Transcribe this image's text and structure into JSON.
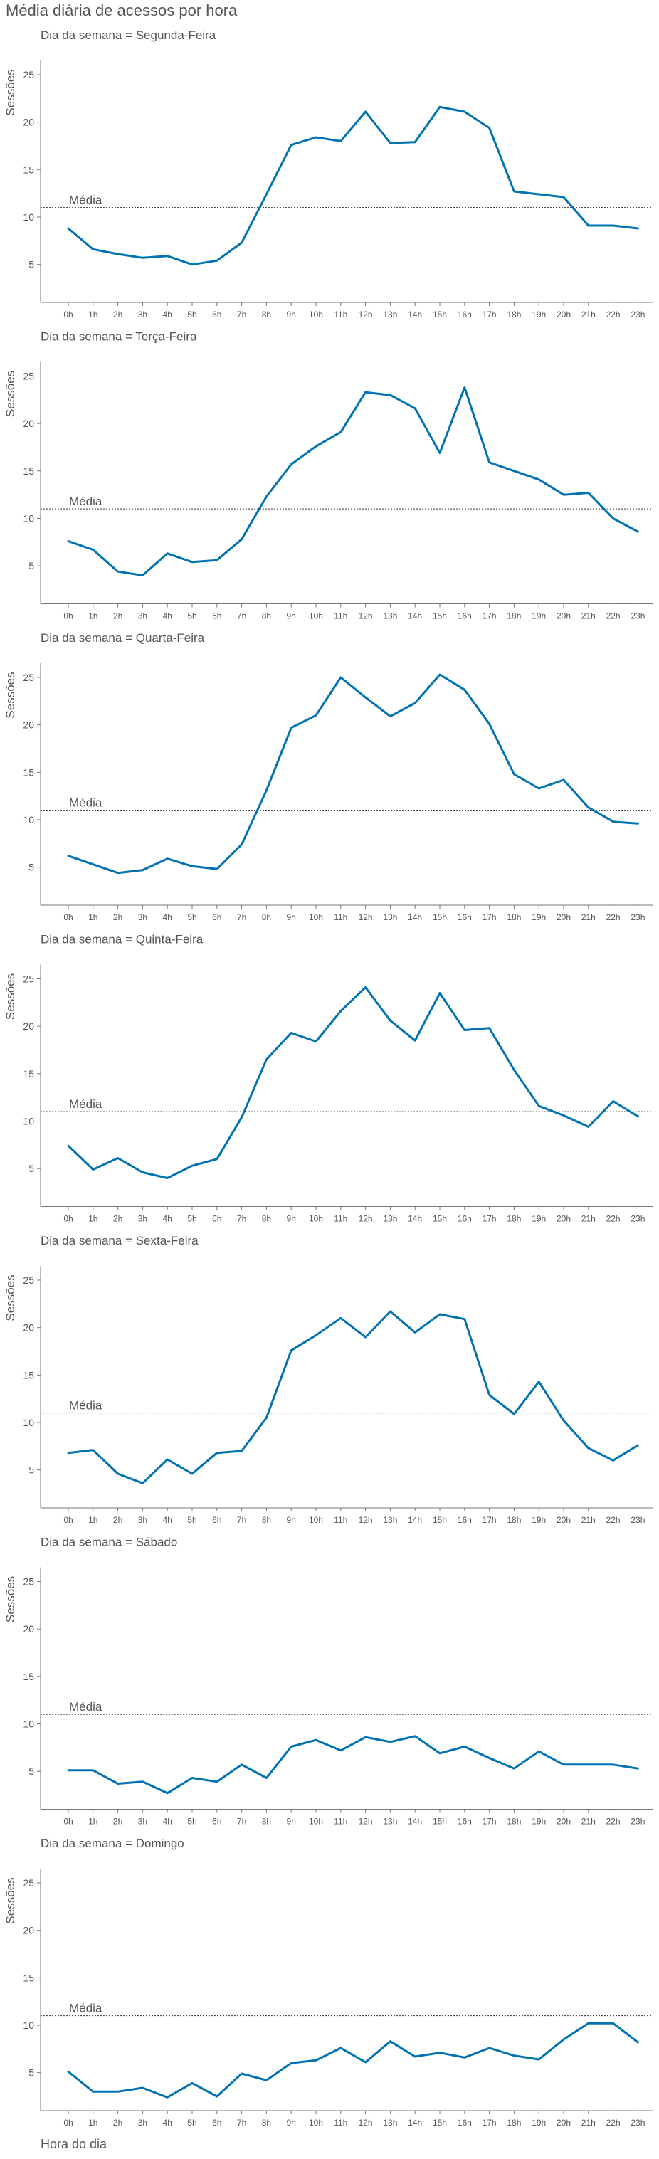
{
  "title": "Média diária de acessos por hora",
  "xlabel": "Hora do dia",
  "ylabel": "Sessões",
  "mean_label": "Média",
  "line_color": "#0072b2",
  "chart_data": {
    "type": "line",
    "categories": [
      "0h",
      "1h",
      "2h",
      "3h",
      "4h",
      "5h",
      "6h",
      "7h",
      "8h",
      "9h",
      "10h",
      "11h",
      "12h",
      "13h",
      "14h",
      "15h",
      "16h",
      "17h",
      "18h",
      "19h",
      "20h",
      "21h",
      "22h",
      "23h"
    ],
    "ylim": [
      1,
      26.5
    ],
    "yticks": [
      5,
      10,
      15,
      20,
      25
    ],
    "mean": 11,
    "grid": false,
    "panels": [
      {
        "title": "Dia da semana = Segunda-Feira",
        "values": [
          8.8,
          6.6,
          6.1,
          5.7,
          5.9,
          5.0,
          5.4,
          7.3,
          12.4,
          17.6,
          18.4,
          18.0,
          21.1,
          17.8,
          17.9,
          21.6,
          21.1,
          19.4,
          12.7,
          12.4,
          12.1,
          9.1,
          9.1,
          8.8
        ]
      },
      {
        "title": "Dia da semana = Terça-Feira",
        "values": [
          7.6,
          6.7,
          4.4,
          4.0,
          6.3,
          5.4,
          5.6,
          7.8,
          12.3,
          15.7,
          17.6,
          19.1,
          23.3,
          23.0,
          21.6,
          16.9,
          23.8,
          15.9,
          15.0,
          14.1,
          12.5,
          12.7,
          10.0,
          8.6
        ]
      },
      {
        "title": "Dia da semana = Quarta-Feira",
        "values": [
          6.2,
          5.3,
          4.4,
          4.7,
          5.9,
          5.1,
          4.8,
          7.4,
          13.1,
          19.7,
          21.0,
          25.0,
          22.9,
          20.9,
          22.3,
          25.3,
          23.7,
          20.1,
          14.8,
          13.3,
          14.2,
          11.3,
          9.8,
          9.6
        ]
      },
      {
        "title": "Dia da semana = Quinta-Feira",
        "values": [
          7.4,
          4.9,
          6.1,
          4.6,
          4.0,
          5.3,
          6.0,
          10.4,
          16.5,
          19.3,
          18.4,
          21.6,
          24.1,
          20.6,
          18.5,
          23.5,
          19.6,
          19.8,
          15.4,
          11.6,
          10.6,
          9.4,
          12.1,
          10.5
        ]
      },
      {
        "title": "Dia da semana = Sexta-Feira",
        "values": [
          6.8,
          7.1,
          4.6,
          3.6,
          6.1,
          4.6,
          6.8,
          7.0,
          10.5,
          17.6,
          19.2,
          21.0,
          19.0,
          21.7,
          19.5,
          21.4,
          20.9,
          12.9,
          10.9,
          14.3,
          10.2,
          7.3,
          6.0,
          7.6
        ]
      },
      {
        "title": "Dia da semana = Sábado",
        "values": [
          5.1,
          5.1,
          3.7,
          3.9,
          2.7,
          4.3,
          3.9,
          5.7,
          4.3,
          7.6,
          8.3,
          7.2,
          8.6,
          8.1,
          8.7,
          6.9,
          7.6,
          6.4,
          5.3,
          7.1,
          5.7,
          5.7,
          5.7,
          5.3
        ]
      },
      {
        "title": "Dia da semana = Domingo",
        "values": [
          5.1,
          3.0,
          3.0,
          3.4,
          2.4,
          3.9,
          2.5,
          4.9,
          4.2,
          6.0,
          6.3,
          7.6,
          6.1,
          8.3,
          6.7,
          7.1,
          6.6,
          7.6,
          6.8,
          6.4,
          8.5,
          10.2,
          10.2,
          8.2
        ]
      }
    ]
  }
}
